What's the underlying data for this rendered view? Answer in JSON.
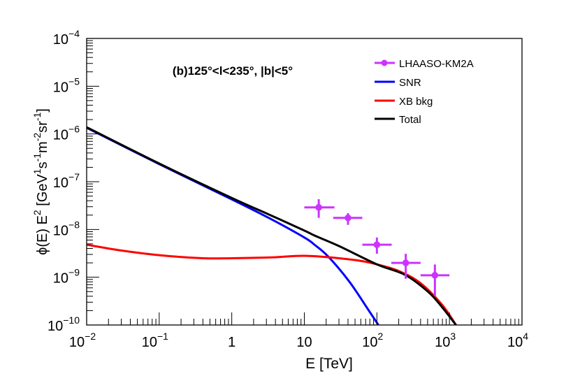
{
  "chart_data": {
    "type": "line",
    "title": "",
    "annotation": "(b)125°<l<235°, |b|<5°",
    "xlabel": "E [TeV]",
    "ylabel": "ϕ(E) E² [GeV¹s⁻¹m⁻²sr⁻¹]",
    "ylabel_parts": {
      "main": "ϕ(E) E",
      "sup1": "2",
      "unit_open": " [GeV",
      "sup2": "1",
      "s": "s",
      "sup3": "-1",
      "m": "m",
      "sup4": "-2",
      "sr": "sr",
      "sup5": "-1",
      "close": "]"
    },
    "xscale": "log",
    "yscale": "log",
    "xlim": [
      0.01,
      10000
    ],
    "ylim": [
      1e-10,
      0.0001
    ],
    "grid": false,
    "legend_position": "top-right",
    "x_ticks": [
      {
        "base": "10",
        "exp": "−2"
      },
      {
        "base": "10",
        "exp": "−1"
      },
      {
        "base": "1",
        "exp": ""
      },
      {
        "base": "10",
        "exp": ""
      },
      {
        "base": "10",
        "exp": "2"
      },
      {
        "base": "10",
        "exp": "3"
      },
      {
        "base": "10",
        "exp": "4"
      }
    ],
    "y_ticks": [
      {
        "base": "10",
        "exp": "−4"
      },
      {
        "base": "10",
        "exp": "−5"
      },
      {
        "base": "10",
        "exp": "−6"
      },
      {
        "base": "10",
        "exp": "−7"
      },
      {
        "base": "10",
        "exp": "−8"
      },
      {
        "base": "10",
        "exp": "−9"
      },
      {
        "base": "10",
        "exp": "−10"
      }
    ],
    "series": [
      {
        "name": "LHAASO-KM2A",
        "kind": "points",
        "color": "#cc33ff",
        "points": [
          {
            "x": 15.8,
            "y": 2.9e-08,
            "xlo": 10,
            "xhi": 26,
            "ylo": 1.75e-08,
            "yhi": 4.3e-08
          },
          {
            "x": 40,
            "y": 1.75e-08,
            "xlo": 25,
            "xhi": 63,
            "ylo": 1.25e-08,
            "yhi": 2.2e-08
          },
          {
            "x": 100,
            "y": 4.8e-09,
            "xlo": 63,
            "xhi": 160,
            "ylo": 3.1e-09,
            "yhi": 6.8e-09
          },
          {
            "x": 250,
            "y": 2e-09,
            "xlo": 158,
            "xhi": 400,
            "ylo": 9.3e-10,
            "yhi": 3.1e-09
          },
          {
            "x": 630,
            "y": 1.1e-09,
            "xlo": 400,
            "xhi": 1000,
            "ylo": 4.1e-10,
            "yhi": 1.85e-09
          }
        ]
      },
      {
        "name": "SNR",
        "kind": "line",
        "color": "#0000ff",
        "x": [
          0.01,
          0.1,
          1,
          3.16,
          10,
          13.8,
          21.4,
          41.7,
          75.9,
          105
        ],
        "y": [
          1.35e-06,
          2.34e-07,
          4.27e-08,
          1.78e-08,
          6.8e-09,
          4.8e-09,
          2.7e-09,
          8.1e-10,
          2.1e-10,
          1e-10
        ]
      },
      {
        "name": "XB bkg",
        "kind": "line",
        "color": "#ff0000",
        "x": [
          0.01,
          0.0275,
          0.1,
          0.4,
          1,
          3.6,
          11,
          49,
          100,
          200,
          400,
          800,
          1230
        ],
        "y": [
          4.8e-09,
          3.7e-09,
          2.9e-09,
          2.5e-09,
          2.5e-09,
          2.6e-09,
          2.8e-09,
          2.3e-09,
          1.86e-09,
          1.35e-09,
          7.5e-10,
          2.6e-10,
          1e-10
        ]
      },
      {
        "name": "Total",
        "kind": "line",
        "color": "#000000",
        "x": [
          0.01,
          0.1,
          1,
          3.16,
          10,
          14,
          30,
          100,
          245,
          513,
          794,
          1230
        ],
        "y": [
          1.38e-06,
          2.4e-07,
          4.57e-08,
          2.1e-08,
          9.5e-09,
          7.4e-09,
          4.5e-09,
          1.86e-09,
          1.12e-09,
          4.9e-10,
          2.35e-10,
          1e-10
        ]
      }
    ]
  }
}
